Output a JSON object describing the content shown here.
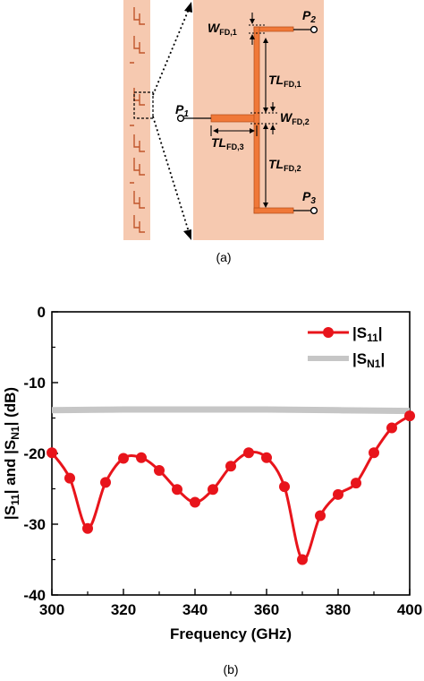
{
  "figure_a": {
    "caption": "(a)",
    "port_labels": [
      {
        "letter": "P",
        "sub": "1"
      },
      {
        "letter": "P",
        "sub": "2"
      },
      {
        "letter": "P",
        "sub": "3"
      }
    ],
    "dim_labels": [
      {
        "main": "W",
        "sub": "FD,1"
      },
      {
        "main": "TL",
        "sub": "FD,1"
      },
      {
        "main": "W",
        "sub": "FD,2"
      },
      {
        "main": "TL",
        "sub": "FD,3"
      },
      {
        "main": "TL",
        "sub": "FD,2"
      }
    ],
    "colors": {
      "board": "#f6c9b0",
      "trace": "#f07838",
      "trace_dark": "#b34a16"
    }
  },
  "figure_b": {
    "caption": "(b)"
  },
  "chart_data": {
    "type": "line",
    "xlabel": "Frequency (GHz)",
    "ylabel_parts": [
      "|S",
      "11",
      "| and |S",
      "N1",
      "| (dB)"
    ],
    "xlim": [
      300,
      400
    ],
    "ylim": [
      -40,
      0
    ],
    "xticks": [
      "300",
      "320",
      "340",
      "360",
      "380",
      "400"
    ],
    "yticks": [
      "0",
      "-10",
      "-20",
      "-30",
      "-40"
    ],
    "grid": false,
    "legend_position": "top-right",
    "series": [
      {
        "legend_main": "|S",
        "legend_sub": "11",
        "legend_end": "|",
        "color": "#e8141b",
        "marker": "circle",
        "x": [
          300,
          305,
          310,
          315,
          320,
          325,
          330,
          335,
          340,
          345,
          350,
          355,
          360,
          365,
          370,
          375,
          380,
          385,
          390,
          395,
          400
        ],
        "y": [
          -19.9,
          -23.5,
          -30.6,
          -24.1,
          -20.7,
          -20.6,
          -22.4,
          -25.1,
          -26.9,
          -25.1,
          -21.8,
          -19.9,
          -20.6,
          -24.7,
          -35.0,
          -28.8,
          -25.8,
          -24.2,
          -19.9,
          -16.4,
          -14.7
        ]
      },
      {
        "legend_main": "|S",
        "legend_sub": "N1",
        "legend_end": "|",
        "color": "#c6c6c6",
        "marker": "none",
        "x": [
          300,
          320,
          340,
          360,
          380,
          400
        ],
        "y": [
          -13.9,
          -13.8,
          -13.8,
          -13.8,
          -13.9,
          -14.0
        ]
      }
    ]
  }
}
